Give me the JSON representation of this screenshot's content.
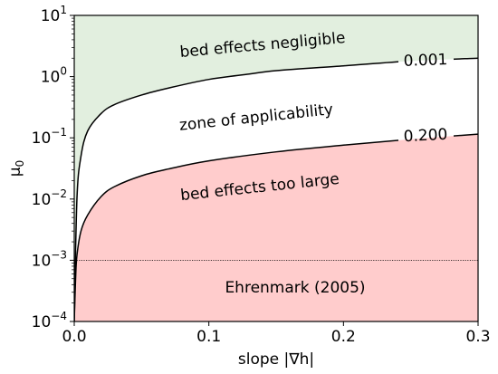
{
  "chart_data": {
    "type": "area",
    "x_scale": "linear",
    "y_scale": "log",
    "xlim": [
      0.0,
      0.3
    ],
    "ylim": [
      0.0001,
      10
    ],
    "xlabel": "slope |∇h|",
    "ylabel": "μ0",
    "x_ticks": [
      "0.0",
      "0.1",
      "0.2",
      "0.3"
    ],
    "x_tick_values": [
      0.0,
      0.1,
      0.2,
      0.3
    ],
    "y_ticks": [
      {
        "base": "10",
        "exp": "−4",
        "value": 0.0001
      },
      {
        "base": "10",
        "exp": "−3",
        "value": 0.001
      },
      {
        "base": "10",
        "exp": "−2",
        "value": 0.01
      },
      {
        "base": "10",
        "exp": "−1",
        "value": 0.1
      },
      {
        "base": "10",
        "exp": "0",
        "value": 1
      },
      {
        "base": "10",
        "exp": "1",
        "value": 10
      }
    ],
    "grid": false,
    "series": [
      {
        "name": "0.001",
        "x": [
          0.0,
          0.002,
          0.005,
          0.01,
          0.02,
          0.03,
          0.05,
          0.07,
          0.1,
          0.13,
          0.15,
          0.2,
          0.25,
          0.3
        ],
        "y": [
          0.0001,
          0.01,
          0.05,
          0.13,
          0.25,
          0.35,
          0.5,
          0.65,
          0.9,
          1.1,
          1.25,
          1.5,
          1.8,
          2.0
        ]
      },
      {
        "name": "0.200",
        "x": [
          0.0,
          0.001,
          0.002,
          0.005,
          0.01,
          0.02,
          0.03,
          0.05,
          0.07,
          0.1,
          0.15,
          0.2,
          0.25,
          0.3
        ],
        "y": [
          0.0001,
          0.0005,
          0.0012,
          0.003,
          0.0055,
          0.011,
          0.016,
          0.024,
          0.031,
          0.042,
          0.059,
          0.076,
          0.095,
          0.115
        ]
      }
    ],
    "reference_line": {
      "y": 0.001,
      "style": "dotted"
    },
    "regions": [
      {
        "label": "bed effects negligible",
        "color": "#e2efdf"
      },
      {
        "label": "zone of applicability",
        "color": "#ffffff"
      },
      {
        "label": "bed effects too large",
        "color": "#ffcccc"
      }
    ],
    "annotations": [
      {
        "text": "Ehrenmark (2005)"
      }
    ],
    "line_color": "#000000"
  }
}
